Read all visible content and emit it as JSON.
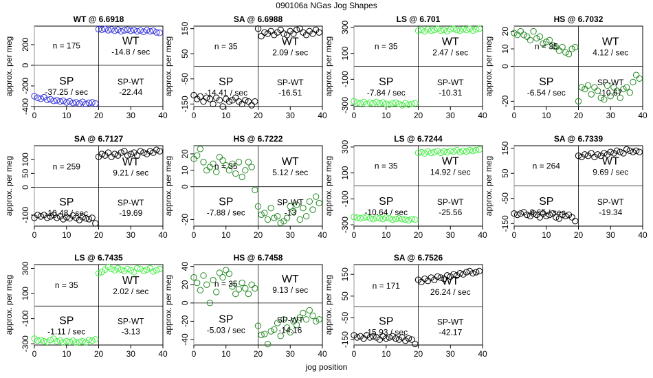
{
  "figure": {
    "title": "090106a   NGas Jog Shapes",
    "xlabel": "jog position",
    "ylabel": "approx. per meg"
  },
  "colors": {
    "WT": "#3333dd",
    "SA": "#000000",
    "LS": "#44ee44",
    "HS": "#228822"
  },
  "chart_data": [
    {
      "type": "scatter",
      "title": "WT @ 6.6918",
      "series_color": "WT",
      "xlim": [
        0,
        40
      ],
      "ylim": [
        -400,
        380
      ],
      "yticks": [
        -400,
        -200,
        0,
        200
      ],
      "xticks": [
        0,
        10,
        20,
        30,
        40
      ],
      "n": "n = 175",
      "wt_rate": "-14.8 / sec",
      "sp_rate": "-37.25 / sec",
      "spwt": "-22.44",
      "y": [
        -300,
        -315,
        -325,
        -310,
        -335,
        -330,
        -345,
        -340,
        -350,
        -345,
        -360,
        -350,
        -365,
        -360,
        -370,
        -355,
        -375,
        -365,
        -360,
        -370,
        350,
        345,
        352,
        340,
        348,
        335,
        345,
        330,
        340,
        345,
        335,
        342,
        330,
        338,
        325,
        340,
        330,
        335,
        320,
        315
      ]
    },
    {
      "type": "scatter",
      "title": "SA @ 6.6988",
      "series_color": "SA",
      "xlim": [
        0,
        40
      ],
      "ylim": [
        -160,
        160
      ],
      "yticks": [
        -150,
        -50,
        50,
        150
      ],
      "xticks": [
        0,
        10,
        20,
        30,
        40
      ],
      "n": "n = 35",
      "wt_rate": "2.09 / sec",
      "sp_rate": "-14.41 / sec",
      "spwt": "-16.51",
      "y": [
        -115,
        -130,
        -120,
        -140,
        -125,
        -130,
        -150,
        -125,
        -135,
        -160,
        -130,
        -140,
        -135,
        -125,
        -140,
        -150,
        -135,
        -140,
        -155,
        -140,
        150,
        120,
        135,
        130,
        140,
        125,
        135,
        145,
        130,
        125,
        140,
        130,
        145,
        150,
        135,
        125,
        140,
        130,
        145,
        135
      ]
    },
    {
      "type": "scatter",
      "title": "LS @ 6.701",
      "series_color": "LS",
      "xlim": [
        0,
        40
      ],
      "ylim": [
        -310,
        310
      ],
      "yticks": [
        -300,
        -100,
        100,
        300
      ],
      "xticks": [
        0,
        10,
        20,
        30,
        40
      ],
      "n": "n = 35",
      "wt_rate": "2.47 / sec",
      "sp_rate": "-7.84 / sec",
      "spwt": "-10.31",
      "y": [
        -270,
        -280,
        -285,
        -275,
        -290,
        -280,
        -285,
        -275,
        -285,
        -280,
        -290,
        -295,
        -285,
        -280,
        -290,
        -300,
        -285,
        -295,
        -290,
        -285,
        275,
        280,
        270,
        285,
        275,
        280,
        290,
        275,
        280,
        270,
        285,
        290,
        280,
        275,
        285,
        280,
        290,
        275,
        285,
        290
      ]
    },
    {
      "type": "scatter",
      "title": "HS @ 6.7032",
      "series_color": "HS",
      "xlim": [
        0,
        40
      ],
      "ylim": [
        -23,
        23
      ],
      "yticks": [
        -20,
        0,
        10,
        20
      ],
      "xticks": [
        0,
        10,
        20,
        30,
        40
      ],
      "n": "n = 35",
      "wt_rate": "4.12 / sec",
      "sp_rate": "-6.54 / sec",
      "spwt": "-10.67",
      "y": [
        19,
        18,
        20,
        18,
        17,
        15,
        20,
        16,
        17,
        13,
        14,
        15,
        12,
        11,
        9,
        11,
        8,
        7,
        10,
        11,
        -20,
        -12,
        -13,
        -11,
        -16,
        -12,
        -14,
        -18,
        -19,
        -11,
        -17,
        -12,
        -14,
        -18,
        -13,
        -12,
        -15,
        -9,
        -5,
        -7
      ]
    },
    {
      "type": "scatter",
      "title": "SA @ 6.7127",
      "series_color": "SA",
      "xlim": [
        0,
        40
      ],
      "ylim": [
        -140,
        150
      ],
      "yticks": [
        -100,
        0,
        50,
        100
      ],
      "xticks": [
        0,
        10,
        20,
        30,
        40
      ],
      "n": "n = 259",
      "wt_rate": "9.21 / sec",
      "sp_rate": "-10.48 / sec",
      "spwt": "-19.69",
      "y": [
        -110,
        -100,
        -105,
        -100,
        -110,
        -105,
        -100,
        -110,
        -105,
        -115,
        -108,
        -112,
        -102,
        -110,
        -118,
        -108,
        -112,
        -115,
        -110,
        -130,
        110,
        120,
        115,
        125,
        110,
        120,
        115,
        125,
        130,
        115,
        120,
        125,
        115,
        130,
        125,
        120,
        130,
        125,
        135,
        130
      ]
    },
    {
      "type": "scatter",
      "title": "HS @ 6.7222",
      "series_color": "HS",
      "xlim": [
        0,
        40
      ],
      "ylim": [
        -24,
        25
      ],
      "yticks": [
        -20,
        0,
        10,
        20
      ],
      "xticks": [
        0,
        10,
        20,
        30,
        40
      ],
      "n": "n = 35",
      "wt_rate": "5.12 / sec",
      "sp_rate": "-7.88 / sec",
      "spwt": "-13",
      "y": [
        17,
        19,
        23,
        15,
        10,
        12,
        14,
        9,
        18,
        16,
        13,
        10,
        14,
        8,
        15,
        6,
        10,
        15,
        12,
        -2,
        -12,
        -17,
        -16,
        -20,
        -13,
        -19,
        -18,
        -22,
        -21,
        -19,
        -12,
        -15,
        -11,
        -20,
        -13,
        -18,
        -9,
        -14,
        -6,
        -10
      ]
    },
    {
      "type": "scatter",
      "title": "LS @ 6.7244",
      "series_color": "LS",
      "xlim": [
        0,
        40
      ],
      "ylim": [
        -310,
        310
      ],
      "yticks": [
        -300,
        -100,
        100,
        300
      ],
      "xticks": [
        0,
        10,
        20,
        30,
        40
      ],
      "n": "n = 35",
      "wt_rate": "14.92 / sec",
      "sp_rate": "-10.64 / sec",
      "spwt": "-25.56",
      "y": [
        -240,
        -245,
        -250,
        -245,
        -240,
        -250,
        -255,
        -245,
        -250,
        -255,
        -245,
        -250,
        -260,
        -255,
        -250,
        -255,
        -260,
        -265,
        -255,
        -260,
        255,
        260,
        250,
        265,
        255,
        260,
        270,
        255,
        265,
        260,
        270,
        265,
        275,
        260,
        270,
        265,
        275,
        270,
        275,
        280
      ]
    },
    {
      "type": "scatter",
      "title": "SA @ 6.7339",
      "series_color": "SA",
      "xlim": [
        0,
        40
      ],
      "ylim": [
        -160,
        160
      ],
      "yticks": [
        -150,
        -50,
        50,
        150
      ],
      "xticks": [
        0,
        10,
        20,
        30,
        40
      ],
      "n": "n = 264",
      "wt_rate": "9.69 / sec",
      "sp_rate": "-9.65 / sec",
      "spwt": "-19.34",
      "y": [
        -110,
        -115,
        -110,
        -105,
        -115,
        -120,
        -110,
        -115,
        -125,
        -110,
        -120,
        -115,
        -110,
        -125,
        -130,
        -115,
        -120,
        -115,
        -125,
        -140,
        120,
        115,
        125,
        120,
        130,
        115,
        125,
        120,
        130,
        125,
        135,
        130,
        140,
        135,
        130,
        145,
        140,
        135,
        140,
        135
      ]
    },
    {
      "type": "scatter",
      "title": "LS @ 6.7435",
      "series_color": "LS",
      "xlim": [
        0,
        40
      ],
      "ylim": [
        -310,
        330
      ],
      "yticks": [
        -300,
        -100,
        100,
        300
      ],
      "xticks": [
        0,
        10,
        20,
        30,
        40
      ],
      "n": "n = 35",
      "wt_rate": "2.02 / sec",
      "sp_rate": "-1.11 / sec",
      "spwt": "-3.13",
      "y": [
        -260,
        -275,
        -270,
        -280,
        -285,
        -270,
        -260,
        -280,
        -275,
        -290,
        -280,
        -285,
        -275,
        -290,
        -285,
        -280,
        -290,
        -270,
        -275,
        -265,
        260,
        270,
        290,
        310,
        295,
        285,
        300,
        290,
        280,
        295,
        285,
        270,
        300,
        295,
        280,
        290,
        300,
        275,
        285,
        295
      ]
    },
    {
      "type": "scatter",
      "title": "HS @ 6.7458",
      "series_color": "HS",
      "xlim": [
        0,
        40
      ],
      "ylim": [
        -46,
        42
      ],
      "yticks": [
        -40,
        -20,
        0,
        20,
        40
      ],
      "xticks": [
        0,
        10,
        20,
        30,
        40
      ],
      "n": "n = 35",
      "wt_rate": "9.13 / sec",
      "sp_rate": "-5.03 / sec",
      "spwt": "-14.16",
      "y": [
        28,
        22,
        14,
        30,
        20,
        0,
        25,
        12,
        33,
        28,
        36,
        32,
        18,
        10,
        15,
        22,
        16,
        10,
        20,
        16,
        -25,
        -35,
        -34,
        -45,
        -31,
        -29,
        -22,
        -36,
        -18,
        -27,
        -32,
        -20,
        -24,
        -16,
        -11,
        -18,
        -8,
        -14,
        -20,
        -18
      ]
    },
    {
      "type": "scatter",
      "title": "SA @ 6.7526",
      "series_color": "SA",
      "xlim": [
        0,
        40
      ],
      "ylim": [
        -175,
        195
      ],
      "yticks": [
        -150,
        -50,
        50,
        150
      ],
      "xticks": [
        0,
        10,
        20,
        30,
        40
      ],
      "n": "n = 171",
      "wt_rate": "26.24 / sec",
      "sp_rate": "-15.93 / sec",
      "spwt": "-42.17",
      "y": [
        -130,
        -140,
        -135,
        -145,
        -130,
        -140,
        -135,
        -140,
        -150,
        -135,
        -145,
        -140,
        -135,
        -145,
        -150,
        -140,
        -155,
        -145,
        -150,
        -170,
        125,
        115,
        130,
        120,
        135,
        125,
        140,
        135,
        130,
        145,
        140,
        150,
        145,
        155,
        150,
        160,
        165,
        155,
        160,
        165
      ]
    }
  ]
}
